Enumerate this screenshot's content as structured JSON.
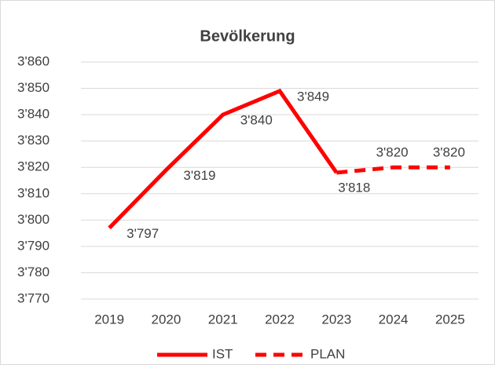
{
  "chart_data": {
    "type": "line",
    "title": "Bevölkerung",
    "categories": [
      "2019",
      "2020",
      "2021",
      "2022",
      "2023",
      "2024",
      "2025"
    ],
    "series": [
      {
        "name": "IST",
        "color": "#ff0000",
        "dashed": false,
        "values": [
          3797,
          3819,
          3840,
          3849,
          3818,
          null,
          null
        ],
        "value_labels": [
          "3'797",
          "3'819",
          "3'840",
          "3'849",
          "3'818",
          null,
          null
        ]
      },
      {
        "name": "PLAN",
        "color": "#ff0000",
        "dashed": true,
        "values": [
          null,
          null,
          null,
          null,
          3818,
          3820,
          3820
        ],
        "value_labels": [
          null,
          null,
          null,
          null,
          null,
          "3'820",
          "3'820"
        ]
      }
    ],
    "ylim": [
      3770,
      3860
    ],
    "yticks": [
      {
        "value": 3770,
        "label": "3'770"
      },
      {
        "value": 3780,
        "label": "3'780"
      },
      {
        "value": 3790,
        "label": "3'790"
      },
      {
        "value": 3800,
        "label": "3'800"
      },
      {
        "value": 3810,
        "label": "3'810"
      },
      {
        "value": 3820,
        "label": "3'820"
      },
      {
        "value": 3830,
        "label": "3'830"
      },
      {
        "value": 3840,
        "label": "3'840"
      },
      {
        "value": 3850,
        "label": "3'850"
      },
      {
        "value": 3860,
        "label": "3'860"
      }
    ],
    "grid": true,
    "legend": "bottom"
  }
}
